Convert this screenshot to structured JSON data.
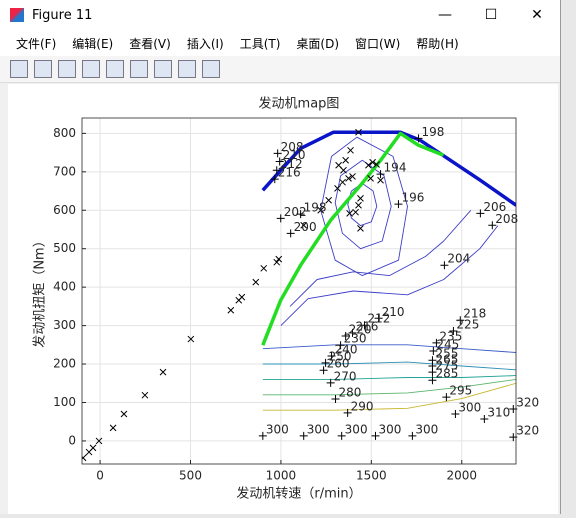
{
  "window": {
    "title": "Figure 11",
    "menu": [
      "文件(F)",
      "编辑(E)",
      "查看(V)",
      "插入(I)",
      "工具(T)",
      "桌面(D)",
      "窗口(W)",
      "帮助(H)"
    ]
  },
  "chart_data": {
    "type": "contour",
    "title": "发动机map图",
    "xlabel": "发动机转速（r/min）",
    "ylabel": "发动机扭矩（Nm）",
    "xlim": [
      -100,
      2300
    ],
    "ylim": [
      -60,
      840
    ],
    "xticks": [
      0,
      500,
      1000,
      1500,
      2000
    ],
    "yticks": [
      0,
      100,
      200,
      300,
      400,
      500,
      600,
      700,
      800
    ],
    "grid": true,
    "contours": [
      {
        "color": "#3d3dc8",
        "x": [
          1390,
          1450,
          1510,
          1530,
          1500,
          1440,
          1390,
          1370,
          1390
        ],
        "y": [
          650,
          670,
          650,
          610,
          570,
          560,
          580,
          615,
          650
        ]
      },
      {
        "color": "#3d3dc8",
        "x": [
          1330,
          1450,
          1570,
          1610,
          1560,
          1440,
          1340,
          1300,
          1330
        ],
        "y": [
          690,
          730,
          690,
          610,
          520,
          500,
          540,
          620,
          690
        ]
      },
      {
        "color": "#3d3dc8",
        "x": [
          1280,
          1420,
          1620,
          1700,
          1650,
          1450,
          1300,
          1220,
          1280
        ],
        "y": [
          740,
          790,
          740,
          610,
          470,
          430,
          470,
          600,
          740
        ]
      },
      {
        "color": "#3d3dc8",
        "x": [
          1050,
          1200,
          1400,
          1600,
          1800,
          1900,
          2050
        ],
        "y": [
          350,
          420,
          440,
          430,
          480,
          520,
          600
        ]
      },
      {
        "color": "#3d3dc8",
        "x": [
          1000,
          1150,
          1400,
          1700,
          1900,
          2100,
          2200
        ],
        "y": [
          300,
          370,
          390,
          380,
          420,
          500,
          560
        ]
      },
      {
        "color": "#3a5cc8",
        "x": [
          900,
          1300,
          1700,
          2000,
          2300
        ],
        "y": [
          240,
          250,
          250,
          240,
          230
        ]
      },
      {
        "color": "#2e8fb5",
        "x": [
          900,
          1300,
          1700,
          2000,
          2300
        ],
        "y": [
          200,
          200,
          205,
          195,
          185
        ]
      },
      {
        "color": "#1fa396",
        "x": [
          900,
          1300,
          1700,
          2000,
          2300
        ],
        "y": [
          160,
          160,
          165,
          165,
          170
        ]
      },
      {
        "color": "#5ab56a",
        "x": [
          900,
          1300,
          1700,
          2000,
          2300
        ],
        "y": [
          120,
          120,
          125,
          140,
          160
        ]
      },
      {
        "color": "#c8b830",
        "x": [
          900,
          1300,
          1700,
          2000,
          2300
        ],
        "y": [
          80,
          80,
          85,
          110,
          150
        ]
      }
    ],
    "series": [
      {
        "color": "#0a14c8",
        "width": 3.5,
        "x": [
          900,
          999,
          1109,
          1291,
          1661,
          1771,
          1937,
          2103,
          2301
        ],
        "y": [
          652,
          704,
          761,
          803,
          803,
          782,
          730,
          678,
          613
        ]
      },
      {
        "color": "#22dd22",
        "width": 3.5,
        "x": [
          900,
          999,
          1109,
          1275,
          1440,
          1551,
          1661,
          1761,
          1899
        ],
        "y": [
          249,
          366,
          457,
          574,
          665,
          730,
          800,
          769,
          743
        ]
      }
    ],
    "scatter": {
      "marker": "x",
      "color": "#000000",
      "x": [
        -94,
        -61,
        -39,
        -6,
        72,
        132,
        248,
        348,
        502,
        723,
        767,
        784,
        861,
        905,
        977,
        988,
        1126,
        1220,
        1264,
        1313,
        1341,
        1374,
        1396,
        1358,
        1385,
        1429,
        1484,
        1507,
        1529,
        1440,
        1429,
        1413,
        1440,
        1380,
        1496,
        1346,
        1319,
        1551
      ],
      "y": [
        -44,
        -29,
        -18,
        0,
        34,
        70,
        119,
        179,
        265,
        340,
        366,
        374,
        413,
        449,
        465,
        473,
        561,
        600,
        626,
        657,
        673,
        683,
        688,
        730,
        756,
        803,
        717,
        725,
        719,
        631,
        613,
        595,
        553,
        592,
        683,
        704,
        717,
        678
      ]
    },
    "points": {
      "marker": "+",
      "color": "#000000",
      "x": [
        982,
        993,
        977,
        966,
        1551,
        1650,
        1761,
        999,
        1109,
        1054,
        1904,
        2103,
        2169,
        1540,
        1462,
        1396,
        1992,
        1358,
        1954,
        1330,
        1860,
        1280,
        1843,
        1247,
        1838,
        1236,
        1838,
        1275,
        1838,
        1302,
        1838,
        1369,
        1915,
        900,
        1126,
        1336,
        1523,
        1727,
        1965,
        2125,
        2285,
        2285
      ],
      "y": [
        748,
        727,
        704,
        681,
        694,
        616,
        787,
        579,
        590,
        540,
        457,
        592,
        561,
        319,
        301,
        281,
        314,
        273,
        286,
        249,
        255,
        221,
        234,
        203,
        210,
        184,
        195,
        151,
        179,
        109,
        158,
        73,
        114,
        13,
        13,
        13,
        13,
        13,
        70,
        57,
        83,
        10
      ],
      "labels": [
        208,
        210,
        212,
        216,
        194,
        196,
        198,
        202,
        198,
        200,
        204,
        206,
        208,
        210,
        212,
        216,
        218,
        220,
        225,
        230,
        235,
        240,
        245,
        250,
        255,
        260,
        265,
        270,
        275,
        280,
        285,
        290,
        295,
        300,
        300,
        300,
        300,
        300,
        300,
        310,
        320,
        320
      ]
    }
  }
}
